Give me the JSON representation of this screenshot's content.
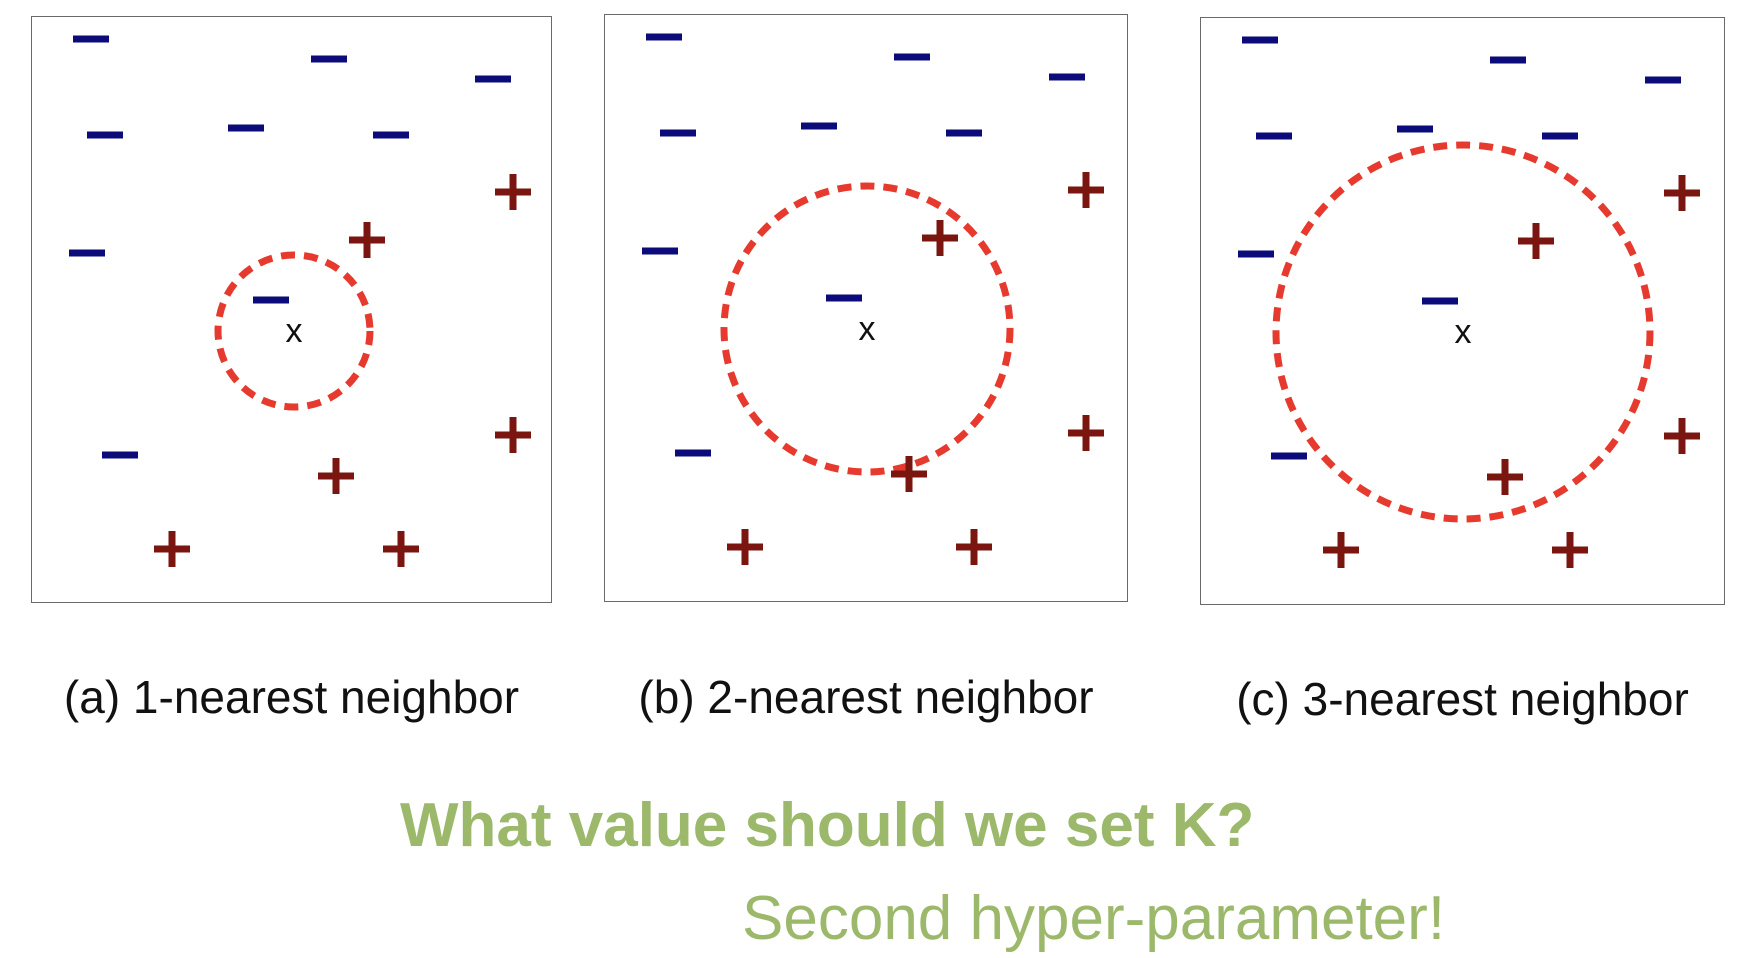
{
  "colors": {
    "negative": "#0b0b7a",
    "positive": "#7a1510",
    "circle": "#e63a2e",
    "query": "#111111",
    "text_green": "#9cb86a"
  },
  "panels": [
    {
      "caption": "(a) 1-nearest neighbor",
      "query_label": "x",
      "k": 1,
      "negatives": [
        [
          59,
          22
        ],
        [
          297,
          42
        ],
        [
          461,
          62
        ],
        [
          73,
          118
        ],
        [
          214,
          111
        ],
        [
          359,
          118
        ],
        [
          55,
          236
        ],
        [
          239,
          283
        ],
        [
          88,
          438
        ]
      ],
      "positives": [
        [
          481,
          175
        ],
        [
          335,
          223
        ],
        [
          481,
          418
        ],
        [
          304,
          459
        ],
        [
          140,
          532
        ],
        [
          369,
          532
        ]
      ],
      "query": [
        262,
        314
      ],
      "circle_radius": 76
    },
    {
      "caption": "(b) 2-nearest neighbor",
      "query_label": "x",
      "k": 2,
      "negatives": [
        [
          59,
          22
        ],
        [
          307,
          42
        ],
        [
          462,
          62
        ],
        [
          73,
          118
        ],
        [
          214,
          111
        ],
        [
          359,
          118
        ],
        [
          55,
          236
        ],
        [
          239,
          283
        ],
        [
          88,
          438
        ]
      ],
      "positives": [
        [
          481,
          175
        ],
        [
          335,
          223
        ],
        [
          481,
          418
        ],
        [
          304,
          459
        ],
        [
          140,
          532
        ],
        [
          369,
          532
        ]
      ],
      "query": [
        262,
        314
      ],
      "circle_radius": 143
    },
    {
      "caption": "(c) 3-nearest neighbor",
      "query_label": "x",
      "k": 3,
      "negatives": [
        [
          59,
          22
        ],
        [
          307,
          42
        ],
        [
          462,
          62
        ],
        [
          73,
          118
        ],
        [
          214,
          111
        ],
        [
          359,
          118
        ],
        [
          55,
          236
        ],
        [
          239,
          283
        ],
        [
          88,
          438
        ]
      ],
      "positives": [
        [
          481,
          175
        ],
        [
          335,
          223
        ],
        [
          481,
          418
        ],
        [
          304,
          459
        ],
        [
          140,
          532
        ],
        [
          369,
          532
        ]
      ],
      "query": [
        262,
        314
      ],
      "circle_radius": 187
    }
  ],
  "question": "What value should we set K?",
  "subtitle": "Second hyper-parameter!"
}
